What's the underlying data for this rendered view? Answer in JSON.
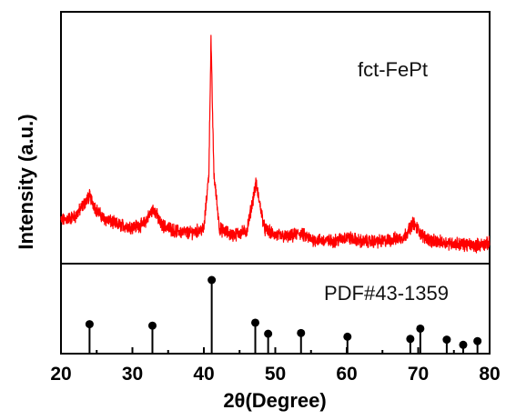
{
  "chart_data": [
    {
      "type": "line",
      "panel": "xrd-pattern",
      "label": "fct-FePt",
      "ylabel": "Intensity (a.u.)",
      "xlim": [
        20,
        80
      ],
      "y_ticks_shown": false,
      "series_color": "#ff0000",
      "baseline_points": [
        [
          20,
          0.12
        ],
        [
          22,
          0.14
        ],
        [
          23,
          0.19
        ],
        [
          24,
          0.24
        ],
        [
          25,
          0.17
        ],
        [
          26,
          0.13
        ],
        [
          28,
          0.1
        ],
        [
          30,
          0.09
        ],
        [
          31.5,
          0.1
        ],
        [
          33,
          0.18
        ],
        [
          34,
          0.1
        ],
        [
          36,
          0.07
        ],
        [
          38,
          0.06
        ],
        [
          40,
          0.08
        ],
        [
          40.7,
          0.35
        ],
        [
          41.0,
          1.0
        ],
        [
          41.4,
          0.35
        ],
        [
          42.2,
          0.08
        ],
        [
          44,
          0.05
        ],
        [
          46,
          0.07
        ],
        [
          47.3,
          0.3
        ],
        [
          48.5,
          0.08
        ],
        [
          50,
          0.05
        ],
        [
          52,
          0.04
        ],
        [
          53.4,
          0.06
        ],
        [
          55,
          0.03
        ],
        [
          58,
          0.02
        ],
        [
          60,
          0.04
        ],
        [
          62,
          0.02
        ],
        [
          65,
          0.02
        ],
        [
          68,
          0.04
        ],
        [
          69.3,
          0.11
        ],
        [
          70.5,
          0.05
        ],
        [
          72,
          0.02
        ],
        [
          75,
          0.01
        ],
        [
          78,
          0.0
        ],
        [
          80,
          0.01
        ]
      ]
    },
    {
      "type": "bar",
      "panel": "reference-pattern",
      "label": "PDF#43-1359",
      "xlim": [
        20,
        80
      ],
      "xlabel": "2θ(Degree)",
      "x_ticks": [
        "20",
        "30",
        "40",
        "50",
        "60",
        "70",
        "80"
      ],
      "x_tick_values": [
        20,
        30,
        40,
        50,
        60,
        70,
        80
      ],
      "peaks": [
        {
          "x": 24.0,
          "y": 0.4
        },
        {
          "x": 32.8,
          "y": 0.38
        },
        {
          "x": 41.1,
          "y": 1.0
        },
        {
          "x": 47.2,
          "y": 0.42
        },
        {
          "x": 49.0,
          "y": 0.27
        },
        {
          "x": 53.6,
          "y": 0.28
        },
        {
          "x": 60.1,
          "y": 0.23
        },
        {
          "x": 68.9,
          "y": 0.2
        },
        {
          "x": 70.3,
          "y": 0.34
        },
        {
          "x": 74.0,
          "y": 0.19
        },
        {
          "x": 76.3,
          "y": 0.12
        },
        {
          "x": 78.3,
          "y": 0.17
        }
      ]
    }
  ]
}
